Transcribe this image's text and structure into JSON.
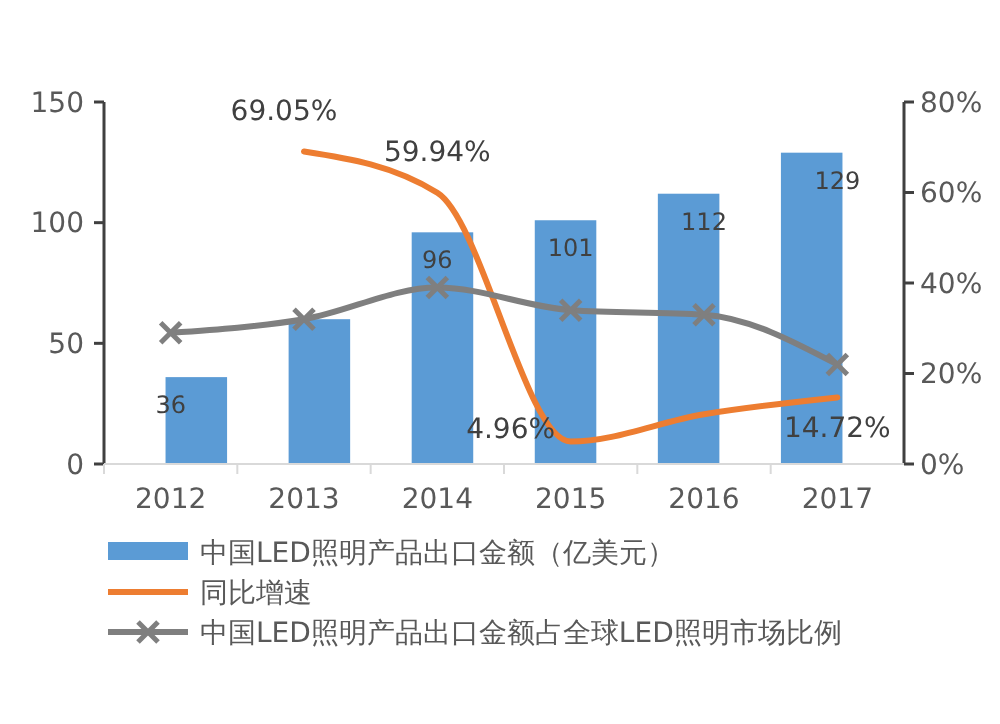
{
  "chart_data": {
    "type": "bar",
    "categories": [
      "2012",
      "2013",
      "2014",
      "2015",
      "2016",
      "2017"
    ],
    "series": [
      {
        "name": "中国LED照明产品出口金额（亿美元）",
        "color": "#5b9bd5",
        "values": [
          36,
          60,
          96,
          101,
          112,
          129
        ],
        "value_labels": [
          "36",
          null,
          "96",
          "101",
          "112",
          "129"
        ]
      },
      {
        "name": "同比增速",
        "type": "line",
        "axis": "y2",
        "color": "#ed7d31",
        "values": [
          null,
          69.05,
          59.94,
          4.96,
          11,
          14.72
        ],
        "value_labels": [
          null,
          "69.05%",
          "59.94%",
          "4.96%",
          null,
          "14.72%"
        ],
        "marker": "none"
      },
      {
        "name": "中国LED照明产品出口金额占全球LED照明市场比例",
        "type": "line",
        "axis": "y2",
        "color": "#7f7f7f",
        "values": [
          29,
          32,
          39,
          34,
          33,
          22
        ],
        "marker": "cross"
      }
    ],
    "ylim": [
      0,
      150
    ],
    "yticks": [
      0,
      50,
      100,
      150
    ],
    "y2lim": [
      0,
      80
    ],
    "y2ticks": [
      {
        "value": 0,
        "label": "0%"
      },
      {
        "value": 20,
        "label": "20%"
      },
      {
        "value": 40,
        "label": "40%"
      },
      {
        "value": 60,
        "label": "60%"
      },
      {
        "value": 80,
        "label": "80%"
      }
    ],
    "grid": false,
    "legend": "bottom"
  }
}
